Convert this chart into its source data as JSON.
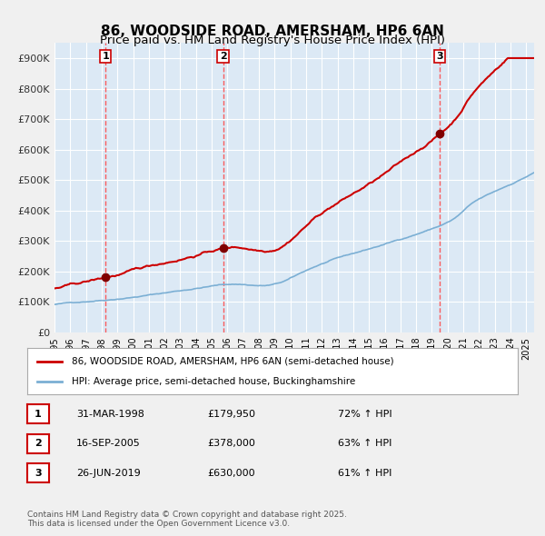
{
  "title1": "86, WOODSIDE ROAD, AMERSHAM, HP6 6AN",
  "title2": "Price paid vs. HM Land Registry's House Price Index (HPI)",
  "bg_color": "#dce9f5",
  "plot_bg_color": "#dce9f5",
  "red_color": "#cc0000",
  "blue_color": "#7bafd4",
  "grid_color": "#ffffff",
  "dashed_color": "#ff4444",
  "ylabel_color": "#333333",
  "purchases": [
    {
      "date_num": 1998.25,
      "price": 179950,
      "label": "1"
    },
    {
      "date_num": 2005.72,
      "price": 378000,
      "label": "2"
    },
    {
      "date_num": 2019.49,
      "price": 630000,
      "label": "3"
    }
  ],
  "table_rows": [
    {
      "num": "1",
      "date": "31-MAR-1998",
      "price": "£179,950",
      "hpi": "72% ↑ HPI"
    },
    {
      "num": "2",
      "date": "16-SEP-2005",
      "price": "£378,000",
      "hpi": "63% ↑ HPI"
    },
    {
      "num": "3",
      "date": "26-JUN-2019",
      "price": "£630,000",
      "hpi": "61% ↑ HPI"
    }
  ],
  "legend1": "86, WOODSIDE ROAD, AMERSHAM, HP6 6AN (semi-detached house)",
  "legend2": "HPI: Average price, semi-detached house, Buckinghamshire",
  "footer": "Contains HM Land Registry data © Crown copyright and database right 2025.\nThis data is licensed under the Open Government Licence v3.0.",
  "ylim": [
    0,
    950000
  ],
  "yticks": [
    0,
    100000,
    200000,
    300000,
    400000,
    500000,
    600000,
    700000,
    800000,
    900000
  ],
  "ytick_labels": [
    "£0",
    "£100K",
    "£200K",
    "£300K",
    "£400K",
    "£500K",
    "£600K",
    "£700K",
    "£800K",
    "£900K"
  ]
}
